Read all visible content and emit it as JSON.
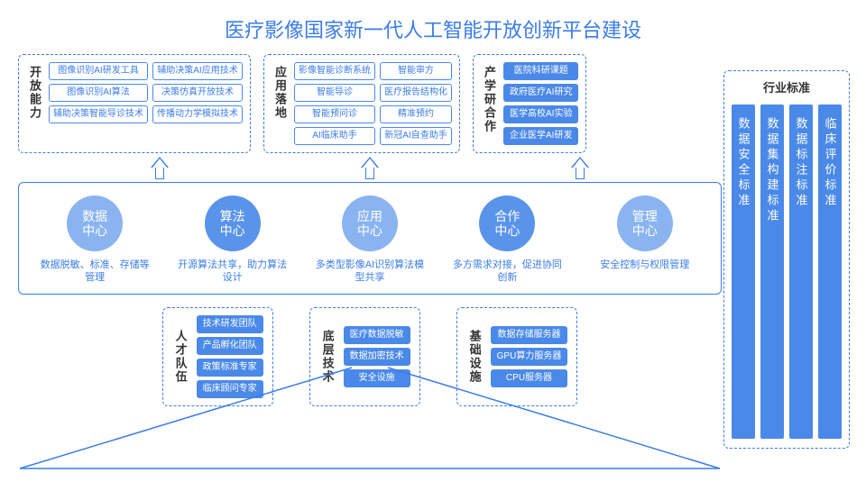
{
  "colors": {
    "primary": "#3b7ce8",
    "fill": "#4a89e8",
    "circle_light": "#8ab4f0",
    "circle_dark": "#5a93ea",
    "text_dark": "#333333",
    "bg": "#ffffff"
  },
  "title": "医疗影像国家新一代人工智能开放创新平台建设",
  "top_boxes": [
    {
      "label": "开放能力",
      "cols": [
        [
          "图像识别AI研发工具",
          "图像识别AI算法",
          "辅助决策智能导诊技术"
        ],
        [
          "辅助决策AI应用技术",
          "决策仿真开放技术",
          "传播动力学模拟技术"
        ]
      ]
    },
    {
      "label": "应用落地",
      "cols": [
        [
          "影像智能诊断系统",
          "智能导诊",
          "智能预问诊",
          "AI临床助手"
        ],
        [
          "智能审方",
          "医疗报告结构化",
          "精准预约",
          "新冠AI自查助手"
        ]
      ]
    },
    {
      "label": "产学研合作",
      "cols": [
        [
          "医院科研课题",
          "政府医疗AI研究",
          "医学高校AI实验",
          "企业医学AI研发"
        ]
      ]
    }
  ],
  "centers": [
    {
      "name": "数据\n中心",
      "desc": "数据脱敏、标准、存储等管理",
      "shade": "light"
    },
    {
      "name": "算法\n中心",
      "desc": "开源算法共享，助力算法设计",
      "shade": "dark"
    },
    {
      "name": "应用\n中心",
      "desc": "多类型影像AI识别算法模型共享",
      "shade": "light"
    },
    {
      "name": "合作\n中心",
      "desc": "多方需求对接，促进协同创新",
      "shade": "dark"
    },
    {
      "name": "管理\n中心",
      "desc": "安全控制与权限管理",
      "shade": "light"
    }
  ],
  "bottom_boxes": [
    {
      "label": "人才队伍",
      "items": [
        "技术研发团队",
        "产品孵化团队",
        "政策标准专家",
        "临床顾问专家"
      ]
    },
    {
      "label": "底层技术",
      "items": [
        "医疗数据脱敏",
        "数据加密技术",
        "安全设施"
      ]
    },
    {
      "label": "基础设施",
      "items": [
        "数据存储服务器",
        "GPU算力服务器",
        "CPU服务器"
      ]
    }
  ],
  "sidebar": {
    "title": "行业标准",
    "pillars": [
      "数据安全标准",
      "数据集构建标准",
      "数据标注标准",
      "临床评价标准"
    ]
  }
}
